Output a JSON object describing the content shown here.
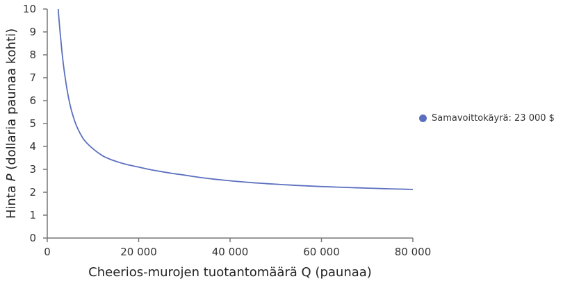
{
  "chart_data": {
    "type": "line",
    "title": "",
    "xlabel": "Cheerios-murojen tuotantomäärä Q (paunaa)",
    "ylabel_prefix": "Hinta ",
    "ylabel_var": "P",
    "ylabel_suffix": " (dollaria paunaa kohti)",
    "xlim": [
      0,
      80000
    ],
    "ylim": [
      0,
      10
    ],
    "x_ticks": [
      "0",
      "20 000",
      "40 000",
      "60 000",
      "80 000"
    ],
    "y_ticks": [
      "0",
      "1",
      "2",
      "3",
      "4",
      "5",
      "6",
      "7",
      "8",
      "9",
      "10"
    ],
    "grid": false,
    "legend_position": "right",
    "series": [
      {
        "name": "Samavoittokäyrä: 23 000 $",
        "color": "#5b6fbf",
        "x": [
          2400,
          3000,
          4000,
          5000,
          6400,
          8000,
          10000,
          12500,
          15000,
          20000,
          25000,
          30000,
          40000,
          50000,
          60000,
          70000,
          80000
        ],
        "y": [
          10.0,
          8.6,
          6.9,
          5.8,
          4.9,
          4.3,
          3.9,
          3.55,
          3.35,
          3.1,
          2.9,
          2.75,
          2.5,
          2.35,
          2.25,
          2.18,
          2.12
        ]
      }
    ]
  },
  "legend": {
    "label": "Samavoittokäyrä: 23 000 $",
    "color": "#5b6fbf"
  }
}
